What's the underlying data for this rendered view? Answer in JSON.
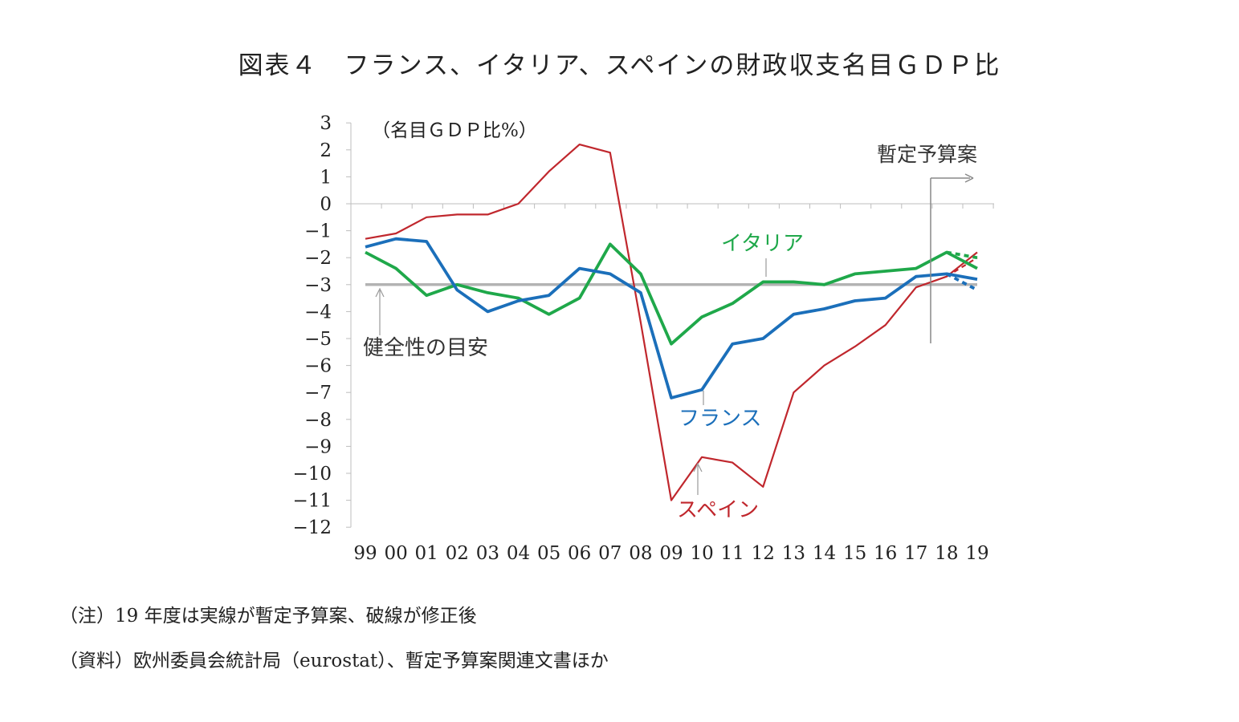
{
  "title": "図表４　フランス、イタリア、スペインの財政収支名目ＧＤＰ比",
  "notes": {
    "note1": "（注）19 年度は実線が暫定予算案、破線が修正後",
    "note2": "（資料）欧州委員会統計局（eurostat）、暫定予算案関連文書ほか"
  },
  "chart_data": {
    "type": "line",
    "title": "図表４　フランス、イタリア、スペインの財政収支名目ＧＤＰ比",
    "ylabel": "（名目ＧＤＰ比%）",
    "xlabel": "",
    "ylim": [
      -12,
      3
    ],
    "yticks": [
      3,
      2,
      1,
      0,
      -1,
      -2,
      -3,
      -4,
      -5,
      -6,
      -7,
      -8,
      -9,
      -10,
      -11,
      -12
    ],
    "ytick_labels": [
      "3",
      "2",
      "1",
      "0",
      "−1",
      "−2",
      "−3",
      "−4",
      "−5",
      "−6",
      "−7",
      "−8",
      "−9",
      "−10",
      "−11",
      "−12"
    ],
    "categories": [
      "99",
      "00",
      "01",
      "02",
      "03",
      "04",
      "05",
      "06",
      "07",
      "08",
      "09",
      "10",
      "11",
      "12",
      "13",
      "14",
      "15",
      "16",
      "17",
      "18",
      "19"
    ],
    "series": [
      {
        "name": "スペイン",
        "color": "#c0272d",
        "values": [
          -1.3,
          -1.1,
          -0.5,
          -0.4,
          -0.4,
          0.0,
          1.2,
          2.2,
          1.9,
          -4.4,
          -11.0,
          -9.4,
          -9.6,
          -10.5,
          -7.0,
          -6.0,
          -5.3,
          -4.5,
          -3.1,
          -2.7,
          -1.8
        ],
        "revised_19": -2.0
      },
      {
        "name": "イタリア",
        "color": "#1fa84a",
        "values": [
          -1.8,
          -2.4,
          -3.4,
          -3.0,
          -3.3,
          -3.5,
          -4.1,
          -3.5,
          -1.5,
          -2.6,
          -5.2,
          -4.2,
          -3.7,
          -2.9,
          -2.9,
          -3.0,
          -2.6,
          -2.5,
          -2.4,
          -1.8,
          -2.4
        ],
        "revised_19": -2.0
      },
      {
        "name": "フランス",
        "color": "#1b6fba",
        "values": [
          -1.6,
          -1.3,
          -1.4,
          -3.2,
          -4.0,
          -3.6,
          -3.4,
          -2.4,
          -2.6,
          -3.3,
          -7.2,
          -6.9,
          -5.2,
          -5.0,
          -4.1,
          -3.9,
          -3.6,
          -3.5,
          -2.7,
          -2.6,
          -2.8
        ],
        "revised_19": -3.2
      }
    ],
    "reference_line": {
      "label": "健全性の目安",
      "value": -3,
      "color": "#b3b3b3"
    },
    "annotations": {
      "provisional": "暫定予算案",
      "italy": "イタリア",
      "france": "フランス",
      "spain": "スペイン",
      "guide": "健全性の目安"
    }
  }
}
